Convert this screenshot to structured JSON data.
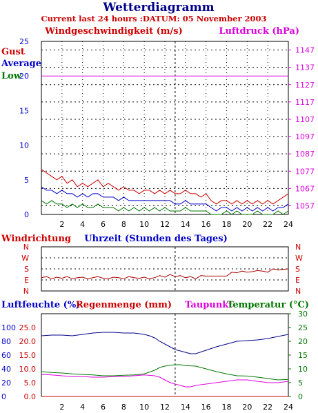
{
  "title": "Wetterdiagramm",
  "subtitle": "Current last 24 hours :DATUM: 05 November 2003",
  "colors": {
    "navy": "#00008b",
    "red": "#cc0000",
    "magenta": "#dd00dd",
    "green": "#007700",
    "blue": "#0000cc",
    "brown": "#aa0000"
  },
  "chart_data": [
    {
      "type": "line",
      "id": "wind",
      "ylabel": "Windgeschwindigkeit (m/s)",
      "y2label": "Luftdruck (hPa)",
      "legend": [
        "Gust",
        "Average",
        "Low"
      ],
      "xlim": [
        0,
        24
      ],
      "ylim": [
        0,
        25
      ],
      "y2lim": [
        1052,
        1152
      ],
      "xticks": [
        "2",
        "4",
        "6",
        "8",
        "10",
        "12",
        "14",
        "16",
        "18",
        "20",
        "22",
        "24"
      ],
      "yticks": [
        "0",
        "5",
        "10",
        "15",
        "20",
        "25"
      ],
      "y2ticks": [
        "1057",
        "1067",
        "1077",
        "1087",
        "1097",
        "1107",
        "1117",
        "1127",
        "1137",
        "1147"
      ],
      "grid": true,
      "marker_x": 13,
      "series": [
        {
          "name": "Gust",
          "x": [
            0,
            0.5,
            1,
            1.5,
            2,
            2.5,
            3,
            3.5,
            4,
            4.5,
            5,
            5.5,
            6,
            6.5,
            7,
            7.5,
            8,
            8.5,
            9,
            9.5,
            10,
            10.5,
            11,
            11.5,
            12,
            12.5,
            13,
            13.5,
            14,
            14.5,
            15,
            15.5,
            16,
            16.5,
            17,
            17.5,
            18,
            18.5,
            19,
            19.5,
            20,
            20.5,
            21,
            21.5,
            22,
            22.5,
            23,
            23.5,
            24
          ],
          "values": [
            6.5,
            6,
            5.5,
            5,
            5.5,
            4.5,
            5,
            4,
            4.5,
            4,
            4.5,
            5,
            4,
            4.5,
            4,
            3.5,
            4,
            3.5,
            3.5,
            3,
            3.5,
            3.5,
            3,
            3.5,
            3,
            3.5,
            3,
            3,
            3.5,
            3,
            3,
            2.5,
            3,
            2,
            1.5,
            2,
            2,
            1.5,
            2,
            1.5,
            2,
            1.5,
            2,
            1.5,
            2,
            1.5,
            2,
            2.5,
            3
          ]
        },
        {
          "name": "Average",
          "x": [
            0,
            0.5,
            1,
            1.5,
            2,
            2.5,
            3,
            3.5,
            4,
            4.5,
            5,
            5.5,
            6,
            6.5,
            7,
            7.5,
            8,
            8.5,
            9,
            9.5,
            10,
            10.5,
            11,
            11.5,
            12,
            12.5,
            13,
            13.5,
            14,
            14.5,
            15,
            15.5,
            16,
            16.5,
            17,
            17.5,
            18,
            18.5,
            19,
            19.5,
            20,
            20.5,
            21,
            21.5,
            22,
            22.5,
            23,
            23.5,
            24
          ],
          "values": [
            4,
            3.5,
            3.5,
            3,
            3.5,
            3,
            3,
            2.5,
            3,
            2.5,
            3,
            3,
            2.5,
            2.5,
            2.5,
            2,
            2.5,
            2,
            2,
            2,
            2,
            2,
            2,
            2,
            2,
            2,
            1.5,
            1.5,
            2,
            1.5,
            1.5,
            1.5,
            1.5,
            1,
            0.5,
            1,
            1,
            0.5,
            1,
            0.5,
            1,
            0.5,
            1,
            0.5,
            1,
            0.5,
            1,
            1,
            1.5
          ]
        },
        {
          "name": "Low",
          "x": [
            0,
            0.5,
            1,
            1.5,
            2,
            2.5,
            3,
            3.5,
            4,
            4.5,
            5,
            5.5,
            6,
            6.5,
            7,
            7.5,
            8,
            8.5,
            9,
            9.5,
            10,
            10.5,
            11,
            11.5,
            12,
            12.5,
            13,
            13.5,
            14,
            14.5,
            15,
            15.5,
            16,
            16.5,
            17,
            17.5,
            18,
            18.5,
            19,
            19.5,
            20,
            20.5,
            21,
            21.5,
            22,
            22.5,
            23,
            23.5,
            24
          ],
          "values": [
            2,
            1.5,
            2,
            1.5,
            1.5,
            1,
            1.5,
            1,
            1.5,
            1,
            1,
            1.5,
            1,
            1,
            1,
            0.5,
            1,
            0.5,
            1,
            0.5,
            1,
            0.5,
            1,
            0.5,
            1,
            0.5,
            0.5,
            0.5,
            1,
            0.5,
            0.5,
            0.5,
            0.5,
            0,
            0,
            0,
            0.5,
            0,
            0.5,
            0,
            0,
            0,
            0.5,
            0,
            0,
            0,
            0.5,
            0,
            0.5
          ]
        },
        {
          "name": "Luftdruck",
          "axis": "right",
          "x": [
            0,
            24
          ],
          "values": [
            1132,
            1132
          ]
        }
      ]
    },
    {
      "type": "line",
      "id": "direction",
      "title": "Windrichtung",
      "xlabel": "Uhrzeit (Stunden des Tages)",
      "yticks": [
        "N",
        "W",
        "S",
        "E",
        "N"
      ],
      "ylim": [
        0,
        4
      ],
      "xlim": [
        0,
        24
      ],
      "marker_x": 13,
      "series": [
        {
          "name": "Windrichtung",
          "x": [
            0,
            0.5,
            1,
            1.5,
            2,
            2.5,
            3,
            3.5,
            4,
            4.5,
            5,
            5.5,
            6,
            6.5,
            7,
            7.5,
            8,
            8.5,
            9,
            9.5,
            10,
            10.5,
            11,
            11.5,
            12,
            12.5,
            13,
            13.5,
            14,
            14.5,
            15,
            15.5,
            16,
            16.5,
            17,
            17.5,
            18,
            18.5,
            19,
            19.5,
            20,
            20.5,
            21,
            21.5,
            22,
            22.5,
            23,
            23.5,
            24
          ],
          "values": [
            2.8,
            2.7,
            2.9,
            2.75,
            2.85,
            2.7,
            2.9,
            2.8,
            2.75,
            2.9,
            2.8,
            2.7,
            2.85,
            2.9,
            2.75,
            2.8,
            2.9,
            2.7,
            2.8,
            2.85,
            2.75,
            2.9,
            2.8,
            2.6,
            2.75,
            2.5,
            2.7,
            2.6,
            2.8,
            2.7,
            2.9,
            2.6,
            2.65,
            2.65,
            2.65,
            2.65,
            2.65,
            2.3,
            2.35,
            2.2,
            2.3,
            2.25,
            2.15,
            2.2,
            2.3,
            2.0,
            2.1,
            2.05,
            2.0
          ]
        }
      ]
    },
    {
      "type": "line",
      "id": "humidity",
      "ylabel": "Luftfeuchte (%)",
      "ylabel2": "Regenmenge (mm)",
      "y2label": "Temperatur (°C)",
      "y3label": "Taupunkt",
      "xlim": [
        0,
        24
      ],
      "ylim": [
        0,
        30
      ],
      "xticks": [
        "2",
        "4",
        "6",
        "8",
        "10",
        "12",
        "14",
        "16",
        "18",
        "20",
        "22",
        "24"
      ],
      "yticks_humidity": [
        "0",
        "20",
        "40",
        "60",
        "80",
        "100"
      ],
      "yticks_rain": [
        "0.0",
        "5.0",
        "10.0",
        "15.0",
        "20.0",
        "25.0"
      ],
      "y2ticks": [
        "0",
        "5",
        "10",
        "15",
        "20",
        "25",
        "30"
      ],
      "marker_x": 13,
      "series": [
        {
          "name": "Luftfeuchte",
          "axis": "humidity",
          "x": [
            0,
            1,
            2,
            3,
            4,
            5,
            6,
            7,
            8,
            9,
            10,
            10.5,
            11,
            11.5,
            12,
            12.5,
            13,
            13.5,
            14,
            14.5,
            15,
            16,
            17,
            18,
            19,
            20,
            21,
            22,
            23,
            24
          ],
          "values": [
            88,
            89,
            89,
            88,
            90,
            92,
            93,
            93,
            92,
            92,
            90,
            88,
            85,
            80,
            76,
            72,
            68,
            66,
            64,
            62,
            62,
            67,
            72,
            76,
            80,
            81,
            82,
            84,
            87,
            90
          ]
        },
        {
          "name": "Regenmenge",
          "axis": "rain",
          "x": [
            0,
            24
          ],
          "values": [
            0,
            0
          ]
        },
        {
          "name": "Temperatur",
          "axis": "temperature",
          "x": [
            0,
            1,
            2,
            3,
            4,
            5,
            6,
            7,
            8,
            9,
            10,
            11,
            11.5,
            12,
            12.5,
            13,
            13.5,
            14,
            15,
            16,
            17,
            18,
            19,
            20,
            21,
            22,
            23,
            24
          ],
          "values": [
            9,
            8.7,
            8.5,
            8.2,
            8,
            7.8,
            7.5,
            7.5,
            7.7,
            7.8,
            8.2,
            9.5,
            10.5,
            11,
            11.3,
            11.5,
            11.5,
            11.2,
            11,
            10,
            9,
            8.2,
            7.5,
            7.4,
            7,
            6.5,
            6,
            6.2
          ]
        },
        {
          "name": "Taupunkt",
          "axis": "temperature",
          "x": [
            0,
            1,
            2,
            3,
            4,
            5,
            6,
            7,
            8,
            9,
            10,
            11,
            11.5,
            12,
            12.5,
            13,
            13.5,
            14,
            14.5,
            15,
            16,
            17,
            18,
            19,
            20,
            21,
            22,
            23,
            24
          ],
          "values": [
            8,
            7.8,
            7.5,
            7.2,
            7.2,
            7,
            7,
            7.2,
            7.2,
            7.5,
            7.8,
            7.5,
            7,
            6,
            5,
            4.5,
            4,
            3.5,
            3.5,
            4,
            4.5,
            5,
            5.5,
            6,
            6,
            5.5,
            5,
            5,
            5.5
          ]
        }
      ]
    }
  ]
}
